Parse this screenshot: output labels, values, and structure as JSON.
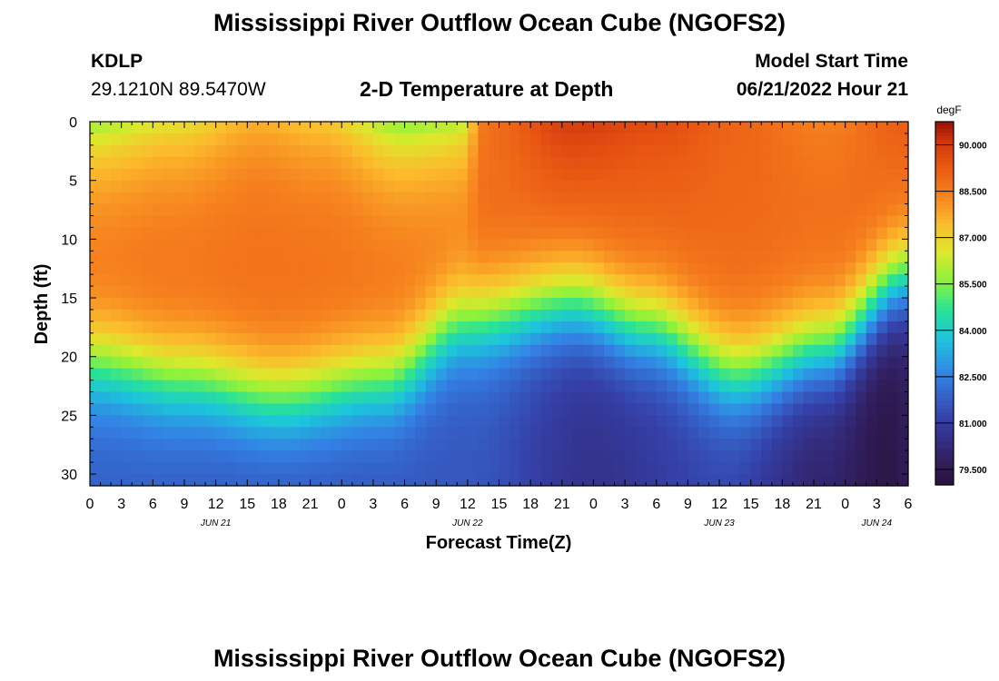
{
  "page": {
    "title_top": "Mississippi River Outflow Ocean Cube (NGOFS2)",
    "title_bottom": "Mississippi River Outflow Ocean Cube (NGOFS2)",
    "station_id": "KDLP",
    "station_coords": "29.1210N  89.5470W",
    "model_start_label": "Model Start Time",
    "model_start_value": "06/21/2022 Hour 21",
    "plot_subtitle": "2-D Temperature at Depth"
  },
  "chart_data": {
    "type": "heatmap",
    "title": "2-D Temperature at Depth",
    "xlabel": "Forecast Time(Z)",
    "ylabel": "Depth (ft)",
    "y_ticks": [
      0,
      5,
      10,
      15,
      20,
      25,
      30
    ],
    "ylim": [
      0,
      31
    ],
    "x_range_hours": [
      0,
      78
    ],
    "x_tick_labels": [
      "0",
      "3",
      "6",
      "9",
      "12",
      "15",
      "18",
      "21",
      "0",
      "3",
      "6",
      "9",
      "12",
      "15",
      "18",
      "21",
      "0",
      "3",
      "6",
      "9",
      "12",
      "15",
      "18",
      "21",
      "0",
      "3",
      "6"
    ],
    "date_labels": [
      {
        "text": "JUN 21",
        "hour": 12
      },
      {
        "text": "JUN 22",
        "hour": 36
      },
      {
        "text": "JUN 23",
        "hour": 60
      },
      {
        "text": "JUN 24",
        "hour": 75
      }
    ],
    "colorbar": {
      "units": "degF",
      "min": 79.0,
      "max": 90.75,
      "ticks": [
        "90.000",
        "88.500",
        "87.000",
        "85.500",
        "84.000",
        "82.500",
        "81.000",
        "79.500"
      ],
      "tick_values": [
        90.0,
        88.5,
        87.0,
        85.5,
        84.0,
        82.5,
        81.0,
        79.5
      ]
    },
    "model": {
      "surface_temp_by_hour": [
        [
          0,
          85.8
        ],
        [
          8,
          86.6
        ],
        [
          16,
          87.6
        ],
        [
          22,
          87.2
        ],
        [
          30,
          85.6
        ],
        [
          35,
          86.0
        ],
        [
          38,
          88.8
        ],
        [
          46,
          90.0
        ],
        [
          54,
          89.6
        ],
        [
          62,
          89.0
        ],
        [
          70,
          88.4
        ],
        [
          78,
          89.2
        ]
      ],
      "thermocline_depth_by_hour": [
        [
          0,
          20.5
        ],
        [
          9,
          22.0
        ],
        [
          18,
          23.5
        ],
        [
          28,
          22.0
        ],
        [
          36,
          17.0
        ],
        [
          46,
          15.5
        ],
        [
          53,
          17.5
        ],
        [
          62,
          21.5
        ],
        [
          70,
          19.5
        ],
        [
          78,
          13.5
        ]
      ],
      "bottom_temp_by_hour": [
        [
          0,
          81.8
        ],
        [
          18,
          81.6
        ],
        [
          36,
          81.6
        ],
        [
          48,
          80.6
        ],
        [
          60,
          81.2
        ],
        [
          70,
          80.0
        ],
        [
          76,
          79.3
        ],
        [
          78,
          79.6
        ]
      ],
      "mixed_layer_temp": 88.9,
      "upper_gradient_depth_ft": 5.5
    }
  }
}
